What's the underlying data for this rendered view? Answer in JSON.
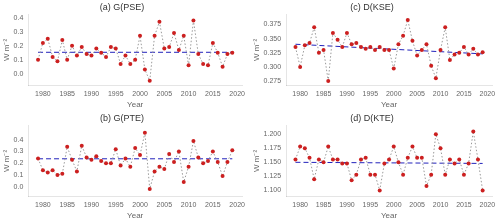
{
  "chart_data": [
    {
      "type": "line",
      "title": "(a) G(PSE)",
      "xlabel": "Year",
      "ylabel": "W m⁻²",
      "x": [
        1979,
        1980,
        1981,
        1982,
        1983,
        1984,
        1985,
        1986,
        1987,
        1988,
        1989,
        1990,
        1991,
        1992,
        1993,
        1994,
        1995,
        1996,
        1997,
        1998,
        1999,
        2000,
        2001,
        2002,
        2003,
        2004,
        2005,
        2006,
        2007,
        2008,
        2009,
        2010,
        2011,
        2012,
        2013,
        2014,
        2015,
        2016,
        2017,
        2018,
        2019
      ],
      "series": [
        {
          "type": "line",
          "color": "#999999",
          "line_style": "dotted",
          "values": [
            0.1,
            0.22,
            0.25,
            0.12,
            0.09,
            0.24,
            0.1,
            0.2,
            0.13,
            0.19,
            0.14,
            0.13,
            0.18,
            0.15,
            0.12,
            0.19,
            0.18,
            0.07,
            0.13,
            0.07,
            0.1,
            0.27,
            0.03,
            -0.05,
            0.27,
            0.37,
            0.18,
            0.19,
            0.29,
            0.17,
            0.27,
            0.06,
            0.38,
            0.14,
            0.07,
            0.06,
            0.22,
            0.15,
            0.05,
            0.14,
            0.15
          ]
        },
        {
          "type": "scatter",
          "color": "#cc2020",
          "marker": "circle",
          "values": [
            0.1,
            0.22,
            0.25,
            0.12,
            0.09,
            0.24,
            0.1,
            0.2,
            0.13,
            0.19,
            0.14,
            0.13,
            0.18,
            0.15,
            0.12,
            0.19,
            0.18,
            0.07,
            0.13,
            0.07,
            0.1,
            0.27,
            0.03,
            -0.05,
            0.27,
            0.37,
            0.18,
            0.19,
            0.29,
            0.17,
            0.27,
            0.06,
            0.38,
            0.14,
            0.07,
            0.06,
            0.22,
            0.15,
            0.05,
            0.14,
            0.15
          ]
        },
        {
          "type": "line",
          "color": "#2222bb",
          "line_style": "dashed",
          "x": [
            1979,
            2019
          ],
          "values": [
            0.153,
            0.153
          ]
        }
      ],
      "xlim": [
        1977,
        2021
      ],
      "xticks": [
        1980,
        1985,
        1990,
        1995,
        2000,
        2005,
        2010,
        2015,
        2020
      ],
      "ylim": [
        -0.08,
        0.42
      ],
      "yticks": [
        {
          "value": 0.0,
          "label": "0.0"
        },
        0.1,
        0.2,
        0.3,
        0.4
      ],
      "grid": false
    },
    {
      "type": "line",
      "title": "(c) D(KSE)",
      "xlabel": "Year",
      "ylabel": "W m⁻²",
      "x": [
        1979,
        1980,
        1981,
        1982,
        1983,
        1984,
        1985,
        1986,
        1987,
        1988,
        1989,
        1990,
        1991,
        1992,
        1993,
        1994,
        1995,
        1996,
        1997,
        1998,
        1999,
        2000,
        2001,
        2002,
        2003,
        2004,
        2005,
        2006,
        2007,
        2008,
        2009,
        2010,
        2011,
        2012,
        2013,
        2014,
        2015,
        2016,
        2017,
        2018,
        2019
      ],
      "series": [
        {
          "type": "line",
          "color": "#999999",
          "line_style": "dotted",
          "values": [
            0.335,
            0.3,
            0.338,
            0.342,
            0.37,
            0.325,
            0.33,
            0.275,
            0.36,
            0.348,
            0.335,
            0.36,
            0.34,
            0.342,
            0.335,
            0.332,
            0.335,
            0.33,
            0.335,
            0.33,
            0.33,
            0.297,
            0.34,
            0.355,
            0.383,
            0.346,
            0.32,
            0.33,
            0.34,
            0.302,
            0.28,
            0.33,
            0.37,
            0.312,
            0.322,
            0.325,
            0.335,
            0.322,
            0.332,
            0.322,
            0.326
          ]
        },
        {
          "type": "scatter",
          "color": "#cc2020",
          "marker": "circle",
          "values": [
            0.335,
            0.3,
            0.338,
            0.342,
            0.37,
            0.325,
            0.33,
            0.275,
            0.36,
            0.348,
            0.335,
            0.36,
            0.34,
            0.342,
            0.335,
            0.332,
            0.335,
            0.33,
            0.335,
            0.33,
            0.33,
            0.297,
            0.34,
            0.355,
            0.383,
            0.346,
            0.32,
            0.33,
            0.34,
            0.302,
            0.28,
            0.33,
            0.37,
            0.312,
            0.322,
            0.325,
            0.335,
            0.322,
            0.332,
            0.322,
            0.326
          ]
        },
        {
          "type": "line",
          "color": "#2222bb",
          "line_style": "dashed",
          "x": [
            1979,
            2019
          ],
          "values": [
            0.34,
            0.323
          ]
        }
      ],
      "xlim": [
        1977,
        2021
      ],
      "xticks": [
        1980,
        1985,
        1990,
        1995,
        2000,
        2005,
        2010,
        2015,
        2020
      ],
      "ylim": [
        0.268,
        0.392
      ],
      "yticks": [
        0.275,
        {
          "value": 0.3,
          "label": "0.300"
        },
        0.325,
        {
          "value": 0.35,
          "label": "0.350"
        },
        0.375
      ],
      "grid": false
    },
    {
      "type": "line",
      "title": "(b) G(PTE)",
      "xlabel": "Year",
      "ylabel": "W m⁻²",
      "x": [
        1979,
        1980,
        1981,
        1982,
        1983,
        1984,
        1985,
        1986,
        1987,
        1988,
        1989,
        1990,
        1991,
        1992,
        1993,
        1994,
        1995,
        1996,
        1997,
        1998,
        1999,
        2000,
        2001,
        2002,
        2003,
        2004,
        2005,
        2006,
        2007,
        2008,
        2009,
        2010,
        2011,
        2012,
        2013,
        2014,
        2015,
        2016,
        2017,
        2018,
        2019
      ],
      "series": [
        {
          "type": "line",
          "color": "#999999",
          "line_style": "dotted",
          "values": [
            0.24,
            0.14,
            0.12,
            0.14,
            0.1,
            0.11,
            0.34,
            0.23,
            0.13,
            0.35,
            0.25,
            0.23,
            0.26,
            0.22,
            0.2,
            0.2,
            0.32,
            0.18,
            0.24,
            0.17,
            0.33,
            0.27,
            0.46,
            -0.02,
            0.13,
            0.17,
            0.15,
            0.28,
            0.21,
            0.3,
            0.04,
            0.17,
            0.39,
            0.25,
            0.2,
            0.22,
            0.3,
            0.21,
            0.09,
            0.21,
            0.31
          ]
        },
        {
          "type": "scatter",
          "color": "#cc2020",
          "marker": "circle",
          "values": [
            0.24,
            0.14,
            0.12,
            0.14,
            0.1,
            0.11,
            0.34,
            0.23,
            0.13,
            0.35,
            0.25,
            0.23,
            0.26,
            0.22,
            0.2,
            0.2,
            0.32,
            0.18,
            0.24,
            0.17,
            0.33,
            0.27,
            0.46,
            -0.02,
            0.13,
            0.17,
            0.15,
            0.28,
            0.21,
            0.3,
            0.04,
            0.17,
            0.39,
            0.25,
            0.2,
            0.22,
            0.3,
            0.21,
            0.09,
            0.21,
            0.31
          ]
        },
        {
          "type": "line",
          "color": "#2222bb",
          "line_style": "dashed",
          "x": [
            1979,
            2019
          ],
          "values": [
            0.238,
            0.238
          ]
        }
      ],
      "xlim": [
        1977,
        2021
      ],
      "xticks": [
        1980,
        1985,
        1990,
        1995,
        2000,
        2005,
        2010,
        2015,
        2020
      ],
      "ylim": [
        -0.08,
        0.52
      ],
      "yticks": [
        {
          "value": 0.0,
          "label": "0.0"
        },
        0.1,
        0.2,
        0.3,
        0.4
      ],
      "grid": false
    },
    {
      "type": "line",
      "title": "(d) D(KTE)",
      "xlabel": "Year",
      "ylabel": "W m⁻²",
      "x": [
        1979,
        1980,
        1981,
        1982,
        1983,
        1984,
        1985,
        1986,
        1987,
        1988,
        1989,
        1990,
        1991,
        1992,
        1993,
        1994,
        1995,
        1996,
        1997,
        1998,
        1999,
        2000,
        2001,
        2002,
        2003,
        2004,
        2005,
        2006,
        2007,
        2008,
        2009,
        2010,
        2011,
        2012,
        2013,
        2014,
        2015,
        2016,
        2017,
        2018,
        2019
      ],
      "series": [
        {
          "type": "line",
          "color": "#999999",
          "line_style": "dotted",
          "values": [
            1.155,
            1.178,
            1.175,
            1.158,
            1.12,
            1.155,
            1.15,
            1.178,
            1.155,
            1.155,
            1.148,
            1.148,
            1.118,
            1.128,
            1.155,
            1.158,
            1.128,
            1.128,
            1.1,
            1.148,
            1.155,
            1.178,
            1.15,
            1.128,
            1.158,
            1.178,
            1.158,
            1.158,
            1.108,
            1.128,
            1.2,
            1.175,
            1.128,
            1.155,
            1.148,
            1.155,
            1.128,
            1.148,
            1.205,
            1.155,
            1.1
          ]
        },
        {
          "type": "scatter",
          "color": "#cc2020",
          "marker": "circle",
          "values": [
            1.155,
            1.178,
            1.175,
            1.158,
            1.12,
            1.155,
            1.15,
            1.178,
            1.155,
            1.155,
            1.148,
            1.148,
            1.118,
            1.128,
            1.155,
            1.158,
            1.128,
            1.128,
            1.1,
            1.148,
            1.155,
            1.178,
            1.15,
            1.128,
            1.158,
            1.178,
            1.158,
            1.158,
            1.108,
            1.128,
            1.2,
            1.175,
            1.128,
            1.155,
            1.148,
            1.155,
            1.128,
            1.148,
            1.205,
            1.155,
            1.1
          ]
        },
        {
          "type": "line",
          "color": "#2222bb",
          "line_style": "dashed",
          "x": [
            1979,
            2019
          ],
          "values": [
            1.15,
            1.148
          ]
        }
      ],
      "xlim": [
        1977,
        2021
      ],
      "xticks": [
        1980,
        1985,
        1990,
        1995,
        2000,
        2005,
        2010,
        2015,
        2020
      ],
      "ylim": [
        1.09,
        1.215
      ],
      "yticks": [
        {
          "value": 1.1,
          "label": "1.100"
        },
        1.125,
        {
          "value": 1.15,
          "label": "1.150"
        },
        1.175,
        {
          "value": 1.2,
          "label": "1.200"
        }
      ],
      "grid": false
    }
  ]
}
